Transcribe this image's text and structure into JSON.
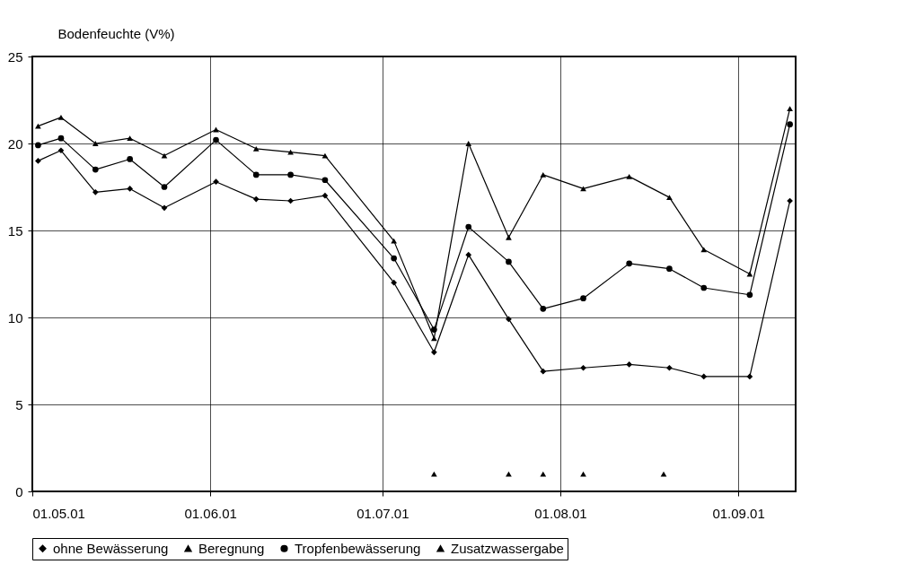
{
  "chart_data": {
    "type": "line",
    "ylabel": "Bodenfeuchte (V%)",
    "x": [
      "--05-02",
      "--05-06",
      "--05-12",
      "--05-18",
      "--05-24",
      "--06-02",
      "--06-09",
      "--06-15",
      "--06-21",
      "--07-03",
      "--07-10",
      "--07-16",
      "--07-23",
      "--07-29",
      "--08-05",
      "--08-13",
      "--08-20",
      "--08-26",
      "--09-03",
      "--09-10"
    ],
    "series": [
      {
        "name": "ohne Bewässerung",
        "color": "#000000",
        "marker": "diamond",
        "values": [
          19.0,
          19.6,
          17.2,
          17.4,
          16.3,
          17.8,
          16.8,
          16.7,
          17.0,
          12.0,
          8.0,
          13.6,
          9.9,
          6.9,
          7.1,
          7.3,
          7.1,
          6.6,
          6.6,
          16.7
        ]
      },
      {
        "name": "Beregnung",
        "color": "#000000",
        "marker": "triangle",
        "values": [
          21.0,
          21.5,
          20.0,
          20.3,
          19.3,
          20.8,
          19.7,
          19.5,
          19.3,
          14.4,
          8.8,
          20.0,
          14.6,
          18.2,
          17.4,
          18.1,
          16.9,
          13.9,
          12.5,
          22.0
        ]
      },
      {
        "name": "Tropfenbewässerung",
        "color": "#000000",
        "marker": "circle",
        "values": [
          19.9,
          20.3,
          18.5,
          19.1,
          17.5,
          20.2,
          18.2,
          18.2,
          17.9,
          13.4,
          9.3,
          15.2,
          13.2,
          10.5,
          11.1,
          13.1,
          12.8,
          11.7,
          11.3,
          21.1
        ]
      },
      {
        "name": "Zusatzwassergabe",
        "type": "scatter",
        "color": "#000000",
        "marker": "triangle",
        "x": [
          "--07-10",
          "--07-23",
          "--07-29",
          "--08-05",
          "--08-19"
        ],
        "values": [
          1,
          1,
          1,
          1,
          1
        ]
      }
    ],
    "xlim": [
      "--05-01",
      "--09-11"
    ],
    "xticks": [
      {
        "value": "--05-01",
        "label": "01.05.01"
      },
      {
        "value": "--06-01",
        "label": "01.06.01"
      },
      {
        "value": "--07-01",
        "label": "01.07.01"
      },
      {
        "value": "--08-01",
        "label": "01.08.01"
      },
      {
        "value": "--09-01",
        "label": "01.09.01"
      }
    ],
    "ylim": [
      0,
      25
    ],
    "yticks": [
      0,
      5,
      10,
      15,
      20,
      25
    ],
    "grid": true,
    "legend": "bottom"
  }
}
